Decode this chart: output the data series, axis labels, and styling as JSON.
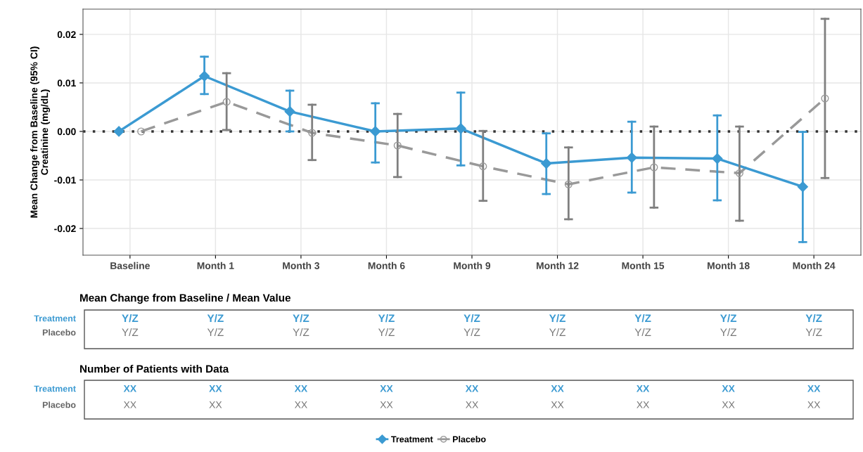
{
  "chart_data": {
    "type": "line",
    "ylabel": "Mean Change from Baseline (95% CI)\nCreatinine (mg/dL)",
    "categories": [
      "Baseline",
      "Month 1",
      "Month 3",
      "Month 6",
      "Month 9",
      "Month 12",
      "Month 15",
      "Month 18",
      "Month 24"
    ],
    "series": [
      {
        "name": "Treatment",
        "color": "#3b9ad2",
        "marker": "diamond",
        "line_style": "solid",
        "values": [
          0,
          0.0114,
          0.0041,
          0,
          0.0006,
          -0.0066,
          -0.0054,
          -0.0056,
          -0.0114
        ],
        "errors": [
          null,
          [
            0.0077,
            0.0154
          ],
          [
            0,
            0.0084
          ],
          [
            -0.0064,
            0.0058
          ],
          [
            -0.007,
            0.008
          ],
          [
            -0.0129,
            -0.0004
          ],
          [
            -0.0126,
            0.002
          ],
          [
            -0.0142,
            0.0033
          ],
          [
            -0.0228,
            -0.0001
          ]
        ]
      },
      {
        "name": "Placebo",
        "color": "#999999",
        "marker": "circle",
        "line_style": "dashed",
        "values": [
          0,
          0.0061,
          -0.0003,
          -0.0029,
          -0.0072,
          -0.0109,
          -0.0074,
          -0.0086,
          0.0068
        ],
        "errors": [
          null,
          [
            0.0003,
            0.012
          ],
          [
            -0.0059,
            0.0055
          ],
          [
            -0.0094,
            0.0036
          ],
          [
            -0.0143,
            0.0001
          ],
          [
            -0.0181,
            -0.0033
          ],
          [
            -0.0157,
            0.001
          ],
          [
            -0.0184,
            0.001
          ],
          [
            -0.0096,
            0.0232
          ]
        ]
      }
    ],
    "ylim": [
      -0.0255,
      0.0252
    ],
    "yticks": [
      {
        "value": -0.02,
        "label": "-0.02"
      },
      {
        "value": -0.01,
        "label": "-0.01"
      },
      {
        "value": 0,
        "label": "0.00"
      },
      {
        "value": 0.01,
        "label": "0.01"
      },
      {
        "value": 0.02,
        "label": "0.02"
      }
    ],
    "grid": true,
    "legend": "bottom",
    "ref_lines": [
      {
        "axis": "y",
        "value": 0,
        "color": "#333333",
        "line_style": "dotted"
      }
    ],
    "annotations": [
      "Mean Change from Baseline / Mean Value",
      "Treatment",
      "Placebo",
      "Y/Z",
      "Y/Z",
      "Y/Z",
      "Y/Z",
      "Y/Z",
      "Y/Z",
      "Y/Z",
      "Y/Z",
      "Y/Z",
      "Y/Z",
      "Y/Z",
      "Y/Z",
      "Y/Z",
      "Y/Z",
      "Y/Z",
      "Y/Z",
      "Y/Z",
      "Y/Z",
      "Number of Patients with Data",
      "Treatment",
      "Placebo",
      "XX",
      "XX",
      "XX",
      "XX",
      "XX",
      "XX",
      "XX",
      "XX",
      "XX",
      "XX",
      "XX",
      "XX",
      "XX",
      "XX",
      "XX",
      "XX",
      "XX",
      "XX"
    ]
  }
}
